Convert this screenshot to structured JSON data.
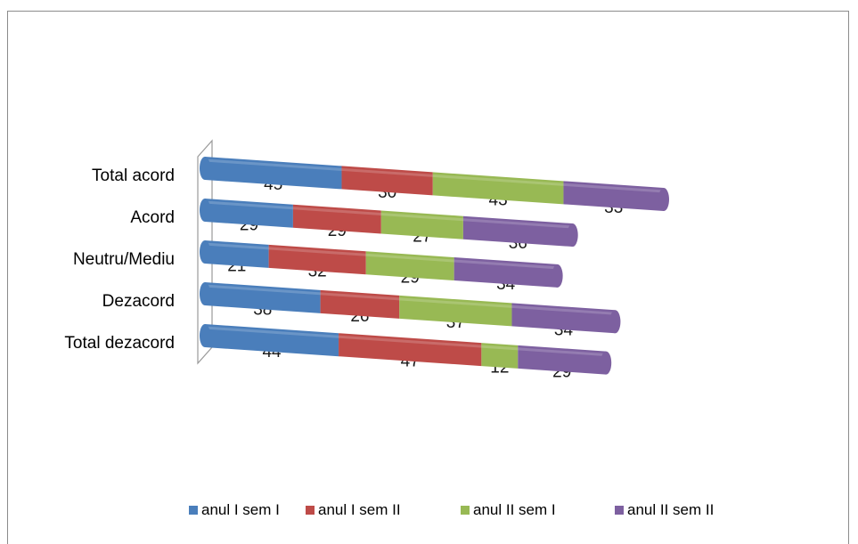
{
  "chart_data": {
    "type": "bar",
    "orientation": "horizontal",
    "stacked": true,
    "categories": [
      "Total acord",
      "Acord",
      "Neutru/Mediu",
      "Dezacord",
      "Total dezacord"
    ],
    "series": [
      {
        "name": "anul I sem I",
        "values": [
          45,
          29,
          21,
          38,
          44
        ],
        "color": "#4a7ebb"
      },
      {
        "name": "anul I sem II",
        "values": [
          30,
          29,
          32,
          26,
          47
        ],
        "color": "#be4b48"
      },
      {
        "name": "anul II sem I",
        "values": [
          43,
          27,
          29,
          37,
          12
        ],
        "color": "#98b954"
      },
      {
        "name": "anul II sem II",
        "values": [
          33,
          36,
          34,
          34,
          29
        ],
        "color": "#7d60a0"
      }
    ],
    "legend_position": "bottom",
    "grid": false
  }
}
